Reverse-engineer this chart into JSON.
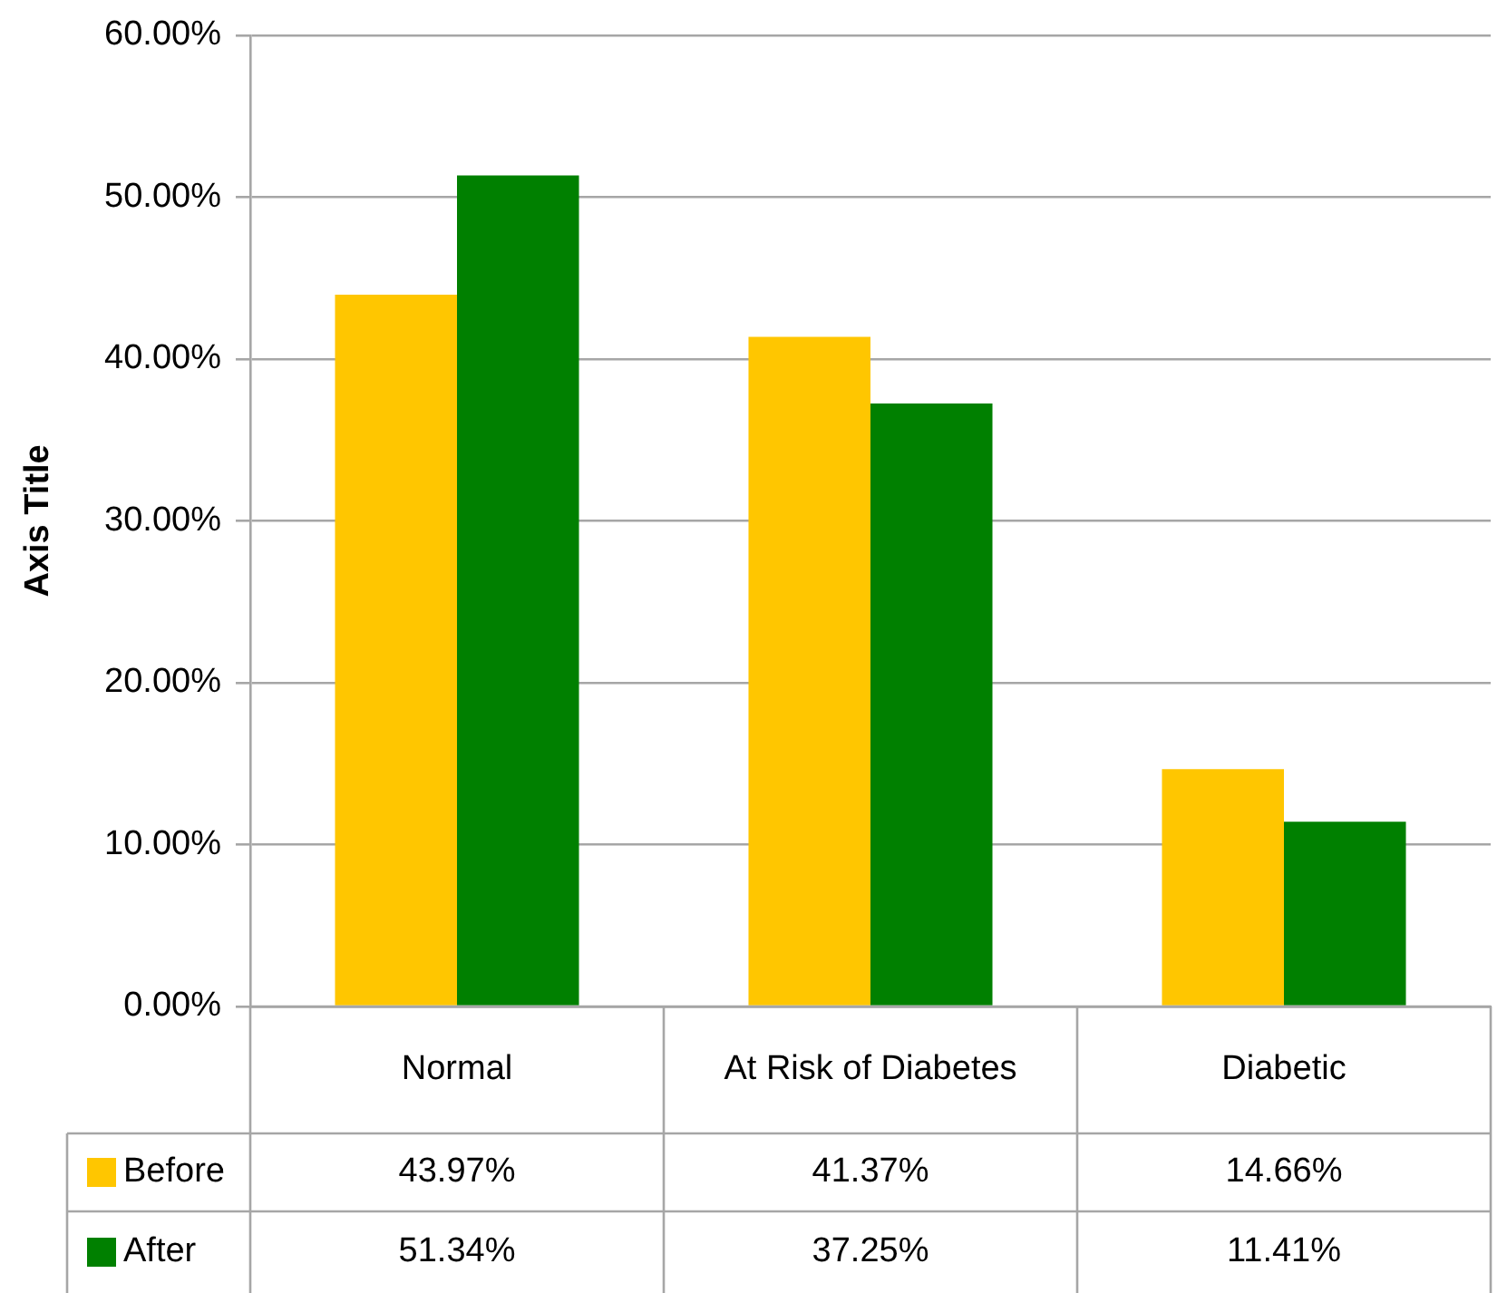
{
  "chart_data": {
    "type": "bar",
    "ylabel": "Axis Title",
    "categories": [
      "Normal",
      "At Risk of Diabetes",
      "Diabetic"
    ],
    "series": [
      {
        "name": "Before",
        "color": "#ffc600",
        "values": [
          43.97,
          41.37,
          14.66
        ],
        "value_labels": [
          "43.97%",
          "41.37%",
          "14.66%"
        ]
      },
      {
        "name": "After",
        "color": "#008000",
        "values": [
          51.34,
          37.25,
          11.41
        ],
        "value_labels": [
          "51.34%",
          "37.25%",
          "11.41%"
        ]
      }
    ],
    "ylim": [
      0,
      60
    ],
    "yticks": [
      {
        "value": 0,
        "label": "0.00%"
      },
      {
        "value": 10,
        "label": "10.00%"
      },
      {
        "value": 20,
        "label": "20.00%"
      },
      {
        "value": 30,
        "label": "30.00%"
      },
      {
        "value": 40,
        "label": "40.00%"
      },
      {
        "value": 50,
        "label": "50.00%"
      },
      {
        "value": 60,
        "label": "60.00%"
      }
    ],
    "grid": "y",
    "legend": "bottom"
  }
}
